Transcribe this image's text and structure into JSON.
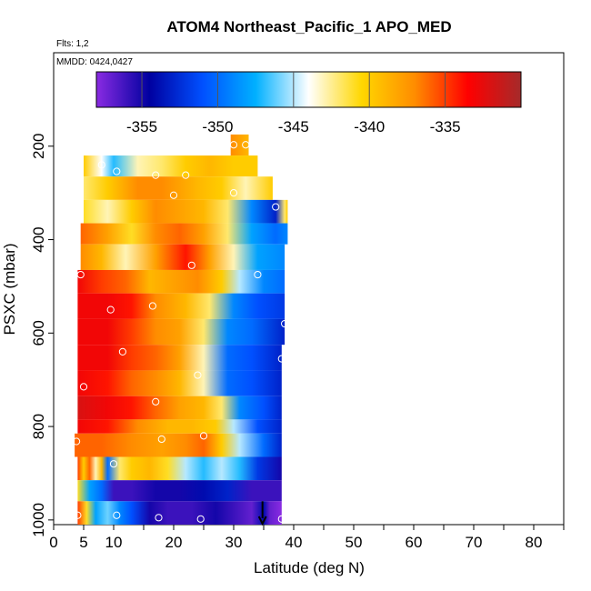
{
  "chart_data": {
    "type": "heatmap",
    "title": "ATOM4 Northeast_Pacific_1 APO_MED",
    "flights_note": "Flts: 1,2",
    "date_note": "MMDD: 0424,0427",
    "xlabel": "Latitude (deg N)",
    "ylabel": "PSXC (mbar)",
    "xlim": [
      0,
      85
    ],
    "ylim": [
      1010,
      0
    ],
    "y_reversed": true,
    "x_ticks": [
      "0",
      "5",
      "10",
      "20",
      "30",
      "40",
      "50",
      "60",
      "70",
      "80"
    ],
    "x_tick_values": [
      0,
      5,
      10,
      20,
      30,
      40,
      50,
      60,
      70,
      80
    ],
    "y_ticks": [
      "200",
      "400",
      "600",
      "800",
      "1000"
    ],
    "y_tick_values": [
      200,
      400,
      600,
      800,
      1000
    ],
    "colorbar": {
      "min": -358,
      "max": -330,
      "ticks": [
        "-355",
        "-350",
        "-345",
        "-340",
        "-335"
      ],
      "tick_values": [
        -355,
        -350,
        -345,
        -340,
        -335
      ],
      "colors": [
        "#8a2be2",
        "#0000a0",
        "#0050ff",
        "#00b0ff",
        "#ffffff",
        "#ffd700",
        "#ff8c00",
        "#ff0000",
        "#a52a2a"
      ]
    },
    "bands": [
      {
        "p0": 175,
        "p1": 220,
        "lat0": 29.5,
        "lat1": 32.5,
        "stops": [
          [
            29.5,
            -337
          ],
          [
            32.5,
            -339
          ]
        ]
      },
      {
        "p0": 220,
        "p1": 265,
        "lat0": 5,
        "lat1": 34,
        "stops": [
          [
            5,
            -340
          ],
          [
            8,
            -344
          ],
          [
            10,
            -347
          ],
          [
            14,
            -343
          ],
          [
            18,
            -342
          ],
          [
            22,
            -340
          ],
          [
            26,
            -339
          ],
          [
            30,
            -340
          ],
          [
            34,
            -340
          ]
        ]
      },
      {
        "p0": 265,
        "p1": 315,
        "lat0": 5,
        "lat1": 36.5,
        "stops": [
          [
            5,
            -342
          ],
          [
            9,
            -340
          ],
          [
            14,
            -337
          ],
          [
            18,
            -337
          ],
          [
            24,
            -339
          ],
          [
            28,
            -340
          ],
          [
            32,
            -343
          ],
          [
            36.5,
            -340
          ]
        ]
      },
      {
        "p0": 315,
        "p1": 365,
        "lat0": 5,
        "lat1": 39,
        "stops": [
          [
            5,
            -341
          ],
          [
            9,
            -343
          ],
          [
            13,
            -340
          ],
          [
            17,
            -337
          ],
          [
            21,
            -338
          ],
          [
            25,
            -339
          ],
          [
            29,
            -342
          ],
          [
            33,
            -349
          ],
          [
            37,
            -353
          ],
          [
            38.5,
            -342
          ],
          [
            39,
            -340
          ]
        ]
      },
      {
        "p0": 365,
        "p1": 410,
        "lat0": 4.5,
        "lat1": 39,
        "stops": [
          [
            4.5,
            -336
          ],
          [
            9,
            -338
          ],
          [
            13,
            -341
          ],
          [
            17,
            -337
          ],
          [
            21,
            -336
          ],
          [
            25,
            -338
          ],
          [
            29,
            -342
          ],
          [
            33,
            -348
          ],
          [
            37,
            -350
          ],
          [
            39,
            -349
          ]
        ]
      },
      {
        "p0": 410,
        "p1": 465,
        "lat0": 4.5,
        "lat1": 38.5,
        "stops": [
          [
            4.5,
            -337
          ],
          [
            8,
            -339
          ],
          [
            12,
            -343
          ],
          [
            17,
            -338
          ],
          [
            22,
            -334
          ],
          [
            26,
            -338
          ],
          [
            30,
            -343
          ],
          [
            34,
            -348
          ],
          [
            38.5,
            -349
          ]
        ]
      },
      {
        "p0": 465,
        "p1": 515,
        "lat0": 4,
        "lat1": 38.5,
        "stops": [
          [
            4,
            -333
          ],
          [
            8,
            -335
          ],
          [
            12,
            -336
          ],
          [
            16,
            -339
          ],
          [
            20,
            -338
          ],
          [
            24,
            -337
          ],
          [
            28,
            -340
          ],
          [
            31,
            -345
          ],
          [
            35,
            -349
          ],
          [
            38.5,
            -350
          ]
        ]
      },
      {
        "p0": 515,
        "p1": 570,
        "lat0": 4,
        "lat1": 38.5,
        "stops": [
          [
            4,
            -333
          ],
          [
            9,
            -333
          ],
          [
            13,
            -334
          ],
          [
            17,
            -337
          ],
          [
            22,
            -339
          ],
          [
            26,
            -342
          ],
          [
            30,
            -349
          ],
          [
            34,
            -351
          ],
          [
            38.5,
            -352
          ]
        ]
      },
      {
        "p0": 570,
        "p1": 625,
        "lat0": 4,
        "lat1": 38.5,
        "stops": [
          [
            4,
            -333
          ],
          [
            9,
            -333
          ],
          [
            13,
            -335
          ],
          [
            17,
            -337
          ],
          [
            21,
            -338
          ],
          [
            25,
            -342
          ],
          [
            29,
            -349
          ],
          [
            33,
            -350
          ],
          [
            38.5,
            -353
          ]
        ]
      },
      {
        "p0": 625,
        "p1": 680,
        "lat0": 4,
        "lat1": 38,
        "stops": [
          [
            4,
            -333
          ],
          [
            9,
            -333
          ],
          [
            13,
            -335
          ],
          [
            17,
            -336
          ],
          [
            21,
            -338
          ],
          [
            25,
            -343
          ],
          [
            29,
            -350
          ],
          [
            33,
            -351
          ],
          [
            38,
            -353
          ]
        ]
      },
      {
        "p0": 680,
        "p1": 735,
        "lat0": 4,
        "lat1": 38,
        "stops": [
          [
            4,
            -333
          ],
          [
            9,
            -334
          ],
          [
            13,
            -336
          ],
          [
            17,
            -337
          ],
          [
            21,
            -339
          ],
          [
            25,
            -343
          ],
          [
            29,
            -350
          ],
          [
            33,
            -351
          ],
          [
            38,
            -353
          ]
        ]
      },
      {
        "p0": 735,
        "p1": 785,
        "lat0": 4,
        "lat1": 38,
        "stops": [
          [
            4,
            -332
          ],
          [
            9,
            -333
          ],
          [
            13,
            -334
          ],
          [
            17,
            -336
          ],
          [
            21,
            -338
          ],
          [
            25,
            -339
          ],
          [
            28,
            -342
          ],
          [
            31,
            -349
          ],
          [
            35,
            -351
          ],
          [
            38,
            -353
          ]
        ]
      },
      {
        "p0": 785,
        "p1": 815,
        "lat0": 4,
        "lat1": 38,
        "stops": [
          [
            4,
            -333
          ],
          [
            9,
            -334
          ],
          [
            14,
            -337
          ],
          [
            19,
            -339
          ],
          [
            23,
            -339
          ],
          [
            27,
            -340
          ],
          [
            30,
            -345
          ],
          [
            34,
            -351
          ],
          [
            38,
            -353
          ]
        ]
      },
      {
        "p0": 815,
        "p1": 865,
        "lat0": 3.5,
        "lat1": 38,
        "stops": [
          [
            3.5,
            -336
          ],
          [
            8,
            -336
          ],
          [
            13,
            -337
          ],
          [
            18,
            -338
          ],
          [
            22,
            -337
          ],
          [
            25,
            -336
          ],
          [
            28,
            -340
          ],
          [
            31,
            -345
          ],
          [
            35,
            -350
          ],
          [
            38,
            -353
          ]
        ]
      },
      {
        "p0": 865,
        "p1": 915,
        "lat0": 4,
        "lat1": 38,
        "stops": [
          [
            4,
            -335
          ],
          [
            5,
            -340
          ],
          [
            6,
            -336
          ],
          [
            7,
            -343
          ],
          [
            8,
            -339
          ],
          [
            9,
            -350
          ],
          [
            11,
            -342
          ],
          [
            13,
            -340
          ],
          [
            16,
            -339
          ],
          [
            19,
            -341
          ],
          [
            22,
            -345
          ],
          [
            25,
            -347
          ],
          [
            28,
            -345
          ],
          [
            31,
            -347
          ],
          [
            34,
            -352
          ],
          [
            38,
            -355
          ]
        ]
      },
      {
        "p0": 915,
        "p1": 960,
        "lat0": 4,
        "lat1": 38,
        "stops": [
          [
            4,
            -341
          ],
          [
            6,
            -348
          ],
          [
            8,
            -350
          ],
          [
            10,
            -356
          ],
          [
            13,
            -356
          ],
          [
            17,
            -355
          ],
          [
            21,
            -355
          ],
          [
            25,
            -354
          ],
          [
            29,
            -353
          ],
          [
            33,
            -356
          ],
          [
            38,
            -356
          ]
        ]
      },
      {
        "p0": 960,
        "p1": 1010,
        "lat0": 4,
        "lat1": 38,
        "stops": [
          [
            4,
            -335
          ],
          [
            5.5,
            -341
          ],
          [
            7,
            -348
          ],
          [
            9,
            -346
          ],
          [
            11,
            -349
          ],
          [
            13,
            -351
          ],
          [
            16,
            -355
          ],
          [
            19,
            -356
          ],
          [
            23,
            -356
          ],
          [
            27,
            -355
          ],
          [
            30,
            -356
          ],
          [
            33,
            -357
          ],
          [
            35,
            -354
          ],
          [
            36,
            -357
          ],
          [
            38,
            -358
          ]
        ]
      }
    ],
    "points": [
      {
        "lat": 30,
        "p": 197
      },
      {
        "lat": 32,
        "p": 197
      },
      {
        "lat": 8,
        "p": 240
      },
      {
        "lat": 10.5,
        "p": 254
      },
      {
        "lat": 17,
        "p": 262
      },
      {
        "lat": 22,
        "p": 262
      },
      {
        "lat": 20,
        "p": 305
      },
      {
        "lat": 30,
        "p": 300
      },
      {
        "lat": 37,
        "p": 330
      },
      {
        "lat": 4.5,
        "p": 475
      },
      {
        "lat": 23,
        "p": 455
      },
      {
        "lat": 34,
        "p": 475
      },
      {
        "lat": 9.5,
        "p": 550
      },
      {
        "lat": 16.5,
        "p": 542
      },
      {
        "lat": 38.5,
        "p": 580
      },
      {
        "lat": 11.5,
        "p": 640
      },
      {
        "lat": 38,
        "p": 655
      },
      {
        "lat": 24,
        "p": 690
      },
      {
        "lat": 5,
        "p": 715
      },
      {
        "lat": 17,
        "p": 747
      },
      {
        "lat": 3.8,
        "p": 832
      },
      {
        "lat": 18,
        "p": 827
      },
      {
        "lat": 25,
        "p": 820
      },
      {
        "lat": 10,
        "p": 880
      },
      {
        "lat": 4,
        "p": 990
      },
      {
        "lat": 10.5,
        "p": 990
      },
      {
        "lat": 17.5,
        "p": 995
      },
      {
        "lat": 24.5,
        "p": 998
      },
      {
        "lat": 38,
        "p": 998
      }
    ],
    "marker": {
      "lat": 34.8,
      "p": 1000
    }
  }
}
